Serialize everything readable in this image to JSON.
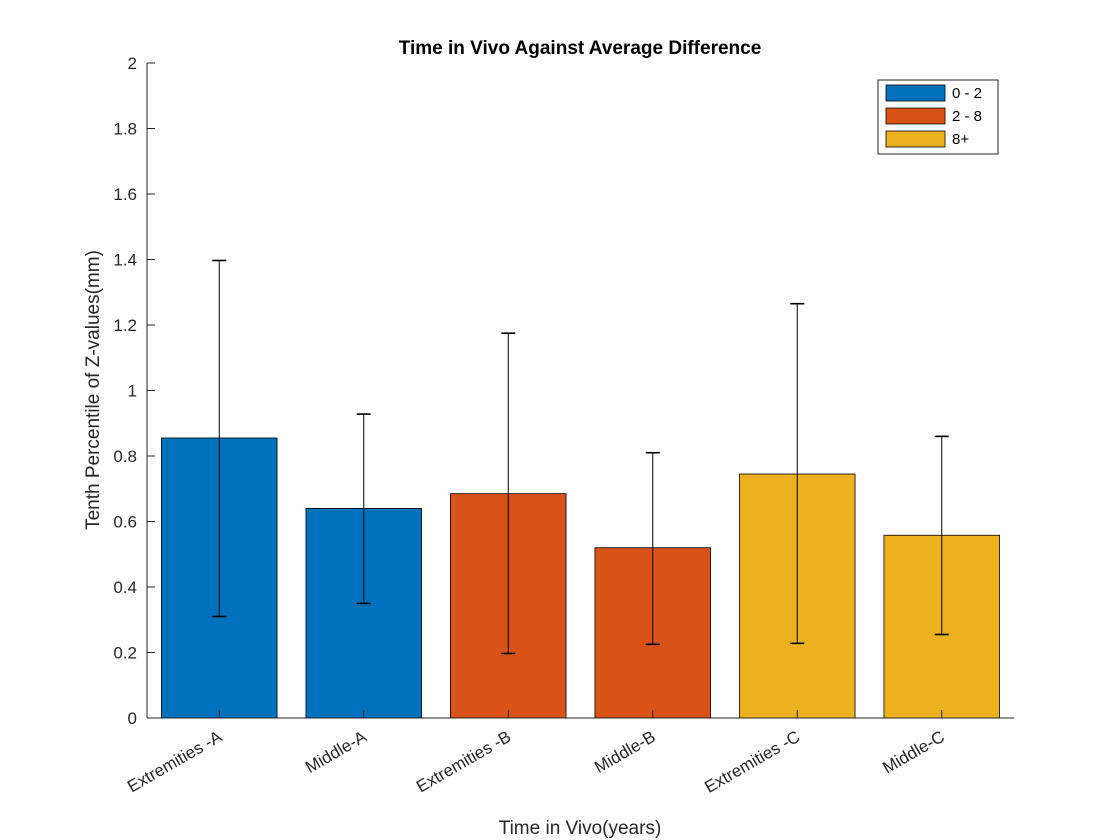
{
  "chart_data": {
    "type": "bar",
    "title": "Time in Vivo Against Average Difference",
    "xlabel": "Time in Vivo(years)",
    "ylabel": "Tenth Percentile of Z-values(mm)",
    "ylim": [
      0,
      2
    ],
    "yticks": [
      "0",
      "0.2",
      "0.4",
      "0.6",
      "0.8",
      "1",
      "1.2",
      "1.4",
      "1.6",
      "1.8",
      "2"
    ],
    "categories": [
      "Extremities -A",
      "Middle-A",
      "Extremities -B",
      "Middle-B",
      "Extremities -C",
      "Middle-C"
    ],
    "values": [
      0.855,
      0.64,
      0.685,
      0.52,
      0.745,
      0.558
    ],
    "error_low": [
      0.31,
      0.35,
      0.197,
      0.225,
      0.228,
      0.255
    ],
    "error_high": [
      1.397,
      0.928,
      1.175,
      0.81,
      1.265,
      0.86
    ],
    "bar_groups": [
      0,
      0,
      1,
      1,
      2,
      2
    ],
    "legend": {
      "position": "top-right",
      "entries": [
        {
          "label": "0 - 2",
          "color": "#0072BD"
        },
        {
          "label": "2 - 8",
          "color": "#D95319"
        },
        {
          "label": "8+",
          "color": "#EDB120"
        }
      ]
    },
    "grid": false
  }
}
